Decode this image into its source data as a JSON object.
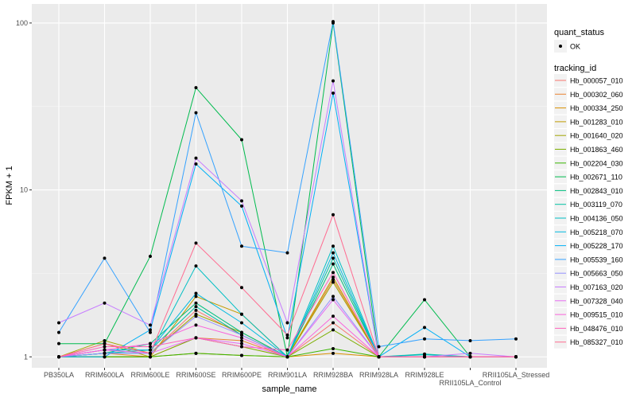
{
  "chart_data": {
    "type": "line",
    "title": "",
    "xlabel": "sample_name",
    "ylabel": "FPKM + 1",
    "yscale": "log10",
    "ylim": [
      0.86,
      130
    ],
    "yticks": [
      1,
      10,
      100
    ],
    "ytick_labels": [
      "1",
      "10",
      "100"
    ],
    "grid": true,
    "legend_position": "right",
    "categories": [
      "PB350LA",
      "RRIM600LA",
      "RRIM600LE",
      "RRIM600SE",
      "RRIM600PE",
      "RRIM901LA",
      "RRIM928BA",
      "RRIM928LA",
      "RRIM928LE",
      "RRII105LA_Control",
      "RRII105LA_Stressed"
    ],
    "point_legend": {
      "title": "quant_status",
      "entries": [
        "OK"
      ]
    },
    "color_legend_title": "tracking_id",
    "series": [
      {
        "name": "Hb_000057_010",
        "color": "#F8766D",
        "values": [
          1,
          1.1,
          1.05,
          1.9,
          1.35,
          1.0,
          1.6,
          1,
          1,
          1,
          1
        ]
      },
      {
        "name": "Hb_000302_060",
        "color": "#EA8331",
        "values": [
          1,
          1.05,
          1.0,
          1.3,
          1.25,
          1,
          2.9,
          1,
          1,
          1,
          1
        ]
      },
      {
        "name": "Hb_000334_250",
        "color": "#D89000",
        "values": [
          1,
          1.0,
          1.0,
          1.05,
          1.02,
          1,
          1.05,
          1,
          1,
          1,
          1
        ]
      },
      {
        "name": "Hb_001283_010",
        "color": "#C09B00",
        "values": [
          1,
          1.2,
          1.0,
          2.3,
          1.8,
          1,
          3.0,
          1,
          1,
          1,
          1
        ]
      },
      {
        "name": "Hb_001640_020",
        "color": "#A3A500",
        "values": [
          1,
          1.25,
          1.05,
          1.8,
          1.4,
          1,
          2.8,
          1,
          1,
          1,
          1
        ]
      },
      {
        "name": "Hb_001863_460",
        "color": "#7CAE00",
        "values": [
          1,
          1.0,
          1.0,
          1.3,
          1.15,
          1,
          1.45,
          1,
          1,
          1,
          1
        ]
      },
      {
        "name": "Hb_002204_030",
        "color": "#39B600",
        "values": [
          1,
          1.0,
          1.0,
          1.05,
          1.02,
          1,
          1.12,
          1,
          1,
          1,
          1
        ]
      },
      {
        "name": "Hb_002671_110",
        "color": "#00BB4E",
        "values": [
          1.2,
          1.2,
          4.0,
          41,
          20,
          1.0,
          100,
          1.0,
          2.2,
          1.0,
          1.0
        ]
      },
      {
        "name": "Hb_002843_010",
        "color": "#00BF7D",
        "values": [
          1,
          1.05,
          1.2,
          2.1,
          1.4,
          1,
          3.6,
          1,
          1,
          1,
          1
        ]
      },
      {
        "name": "Hb_003119_070",
        "color": "#00C1A3",
        "values": [
          1,
          1.05,
          1.1,
          2.0,
          1.35,
          1,
          3.9,
          1,
          1.04,
          1,
          1
        ]
      },
      {
        "name": "Hb_004136_050",
        "color": "#00BFC4",
        "values": [
          1,
          1.05,
          1.05,
          3.5,
          1.8,
          1,
          4.6,
          1,
          1.03,
          1,
          1
        ]
      },
      {
        "name": "Hb_005218_070",
        "color": "#00BAE0",
        "values": [
          1,
          1.1,
          1.1,
          2.4,
          1.6,
          1,
          4.2,
          1,
          1,
          1,
          1
        ]
      },
      {
        "name": "Hb_005228_170",
        "color": "#00B0F6",
        "values": [
          1,
          1.0,
          1.45,
          14.3,
          8.0,
          1.3,
          38,
          1.0,
          1.5,
          1.0,
          1.0
        ]
      },
      {
        "name": "Hb_005539_160",
        "color": "#35A2FF",
        "values": [
          1.4,
          3.9,
          1.4,
          29,
          4.6,
          4.2,
          102,
          1.15,
          1.28,
          1.25,
          1.28
        ]
      },
      {
        "name": "Hb_005663_050",
        "color": "#9590FF",
        "values": [
          1,
          1.05,
          1.05,
          1.75,
          1.35,
          1,
          2.3,
          1,
          1,
          1,
          1
        ]
      },
      {
        "name": "Hb_007163_020",
        "color": "#C77CFF",
        "values": [
          1.6,
          2.1,
          1.55,
          15.5,
          8.6,
          1.6,
          45,
          1.0,
          1.0,
          1.05,
          1.0
        ]
      },
      {
        "name": "Hb_007328_040",
        "color": "#E76BF3",
        "values": [
          1,
          1.1,
          1.05,
          1.3,
          1.2,
          1,
          2.2,
          1,
          1,
          1,
          1
        ]
      },
      {
        "name": "Hb_009515_010",
        "color": "#FA62DB",
        "values": [
          1,
          1.1,
          1.2,
          1.55,
          1.3,
          1,
          1.75,
          1,
          1,
          1,
          1
        ]
      },
      {
        "name": "Hb_048476_010",
        "color": "#FF62BC",
        "values": [
          1,
          1.15,
          1.15,
          1.3,
          1.15,
          1.1,
          3.2,
          1,
          1,
          1,
          1
        ]
      },
      {
        "name": "Hb_085327_010",
        "color": "#FF6C91",
        "values": [
          1,
          1.2,
          1.05,
          4.8,
          2.6,
          1.35,
          7.1,
          1,
          1,
          1,
          1
        ]
      }
    ]
  }
}
